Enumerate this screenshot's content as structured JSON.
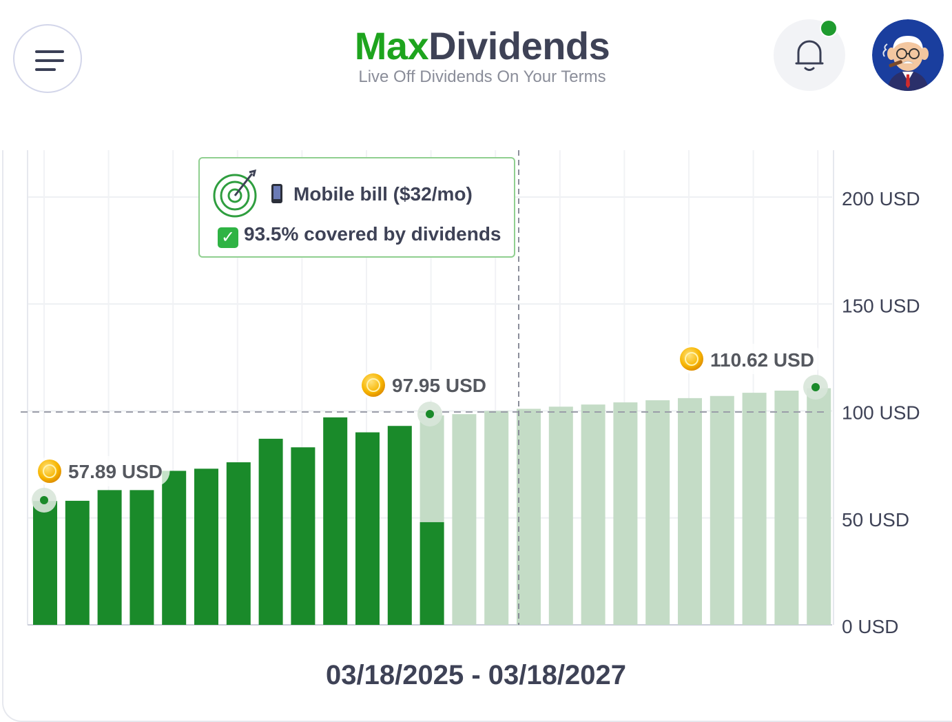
{
  "header": {
    "logo_part1": "Max",
    "logo_part2": "Dividends",
    "tagline": "Live Off Dividends On Your Terms"
  },
  "icons": {
    "menu": "hamburger-menu-icon",
    "notifications": "bell-icon",
    "avatar": "user-avatar-cartoon",
    "goal": "target-icon",
    "phone": "mobile-phone-icon",
    "check": "check-box-icon",
    "coin": "gold-coin-icon"
  },
  "colors": {
    "brand_green": "#1ea41e",
    "actual_bar": "#1a8a2a",
    "projected_bar": "#c4dcc6",
    "notification_dot": "#1f9b2f"
  },
  "tooltip": {
    "goal_label": "Mobile bill ($32/mo)",
    "coverage": "93.5% covered by dividends"
  },
  "date_range": "03/18/2025 - 03/18/2027",
  "chart_data": {
    "type": "bar",
    "y_unit": "USD",
    "yticks": [
      "200 USD",
      "150 USD",
      "100 USD",
      "50 USD",
      "0 USD"
    ],
    "ylim": [
      0,
      222
    ],
    "grid": true,
    "reference_line": 100,
    "series": [
      {
        "type": "actual",
        "values": [
          57.89,
          58,
          63,
          63,
          72,
          73,
          76,
          87,
          83,
          97,
          90,
          93,
          48
        ]
      },
      {
        "type": "projected",
        "values": [
          97.95,
          98.5,
          100,
          101,
          102,
          103,
          104,
          105,
          106,
          107,
          108.5,
          109.5,
          110.62
        ]
      }
    ],
    "annotations": [
      {
        "label": "57.89 USD",
        "value": 57.89
      },
      {
        "label": "97.95 USD",
        "value": 97.95
      },
      {
        "label": "110.62 USD",
        "value": 110.62
      }
    ]
  }
}
